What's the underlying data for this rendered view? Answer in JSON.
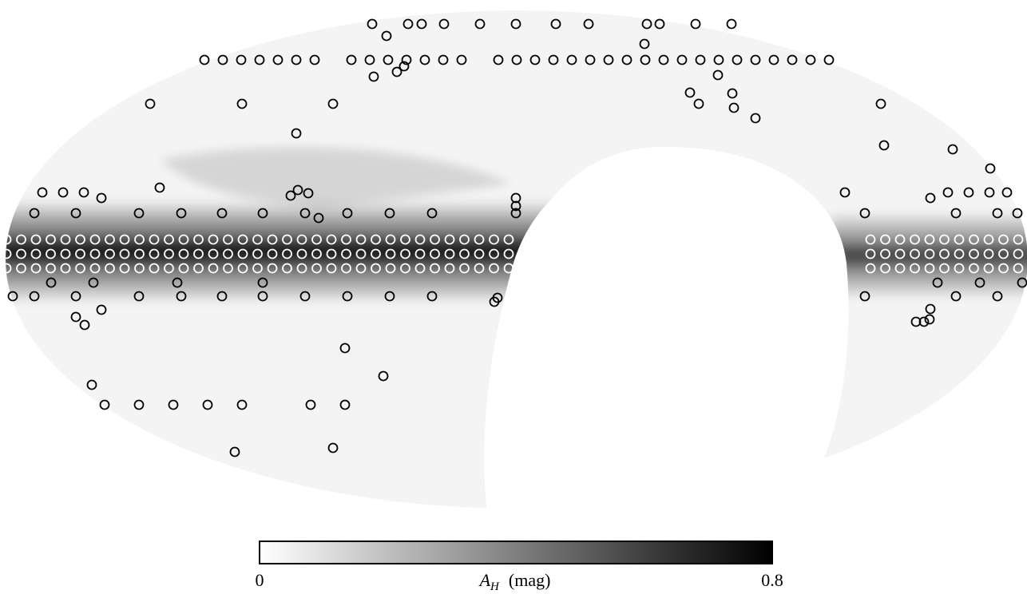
{
  "colorbar": {
    "symbol": "A",
    "subscript": "H",
    "unit": "(mag)",
    "ticks": [
      0,
      0.8
    ]
  }
}
